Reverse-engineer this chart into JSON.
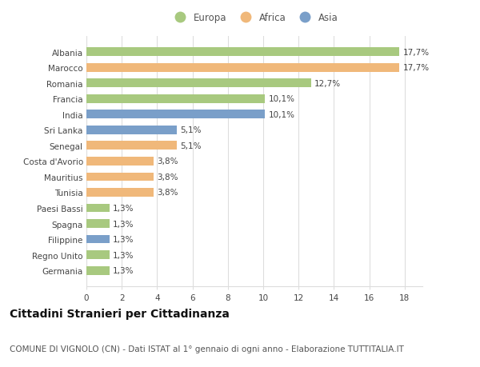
{
  "countries": [
    "Albania",
    "Marocco",
    "Romania",
    "Francia",
    "India",
    "Sri Lanka",
    "Senegal",
    "Costa d'Avorio",
    "Mauritius",
    "Tunisia",
    "Paesi Bassi",
    "Spagna",
    "Filippine",
    "Regno Unito",
    "Germania"
  ],
  "values": [
    17.7,
    17.7,
    12.7,
    10.1,
    10.1,
    5.1,
    5.1,
    3.8,
    3.8,
    3.8,
    1.3,
    1.3,
    1.3,
    1.3,
    1.3
  ],
  "labels": [
    "17,7%",
    "17,7%",
    "12,7%",
    "10,1%",
    "10,1%",
    "5,1%",
    "5,1%",
    "3,8%",
    "3,8%",
    "3,8%",
    "1,3%",
    "1,3%",
    "1,3%",
    "1,3%",
    "1,3%"
  ],
  "continents": [
    "Europa",
    "Africa",
    "Europa",
    "Europa",
    "Asia",
    "Asia",
    "Africa",
    "Africa",
    "Africa",
    "Africa",
    "Europa",
    "Europa",
    "Asia",
    "Europa",
    "Europa"
  ],
  "colors": {
    "Europa": "#a8c97f",
    "Africa": "#f0b87a",
    "Asia": "#7a9fc9"
  },
  "legend_order": [
    "Europa",
    "Africa",
    "Asia"
  ],
  "title": "Cittadini Stranieri per Cittadinanza",
  "subtitle": "COMUNE DI VIGNOLO (CN) - Dati ISTAT al 1° gennaio di ogni anno - Elaborazione TUTTITALIA.IT",
  "xlim": [
    0,
    19
  ],
  "xticks": [
    0,
    2,
    4,
    6,
    8,
    10,
    12,
    14,
    16,
    18
  ],
  "background_color": "#ffffff",
  "grid_color": "#dddddd",
  "bar_height": 0.55,
  "title_fontsize": 10,
  "subtitle_fontsize": 7.5,
  "label_fontsize": 7.5,
  "tick_fontsize": 7.5,
  "legend_fontsize": 8.5
}
